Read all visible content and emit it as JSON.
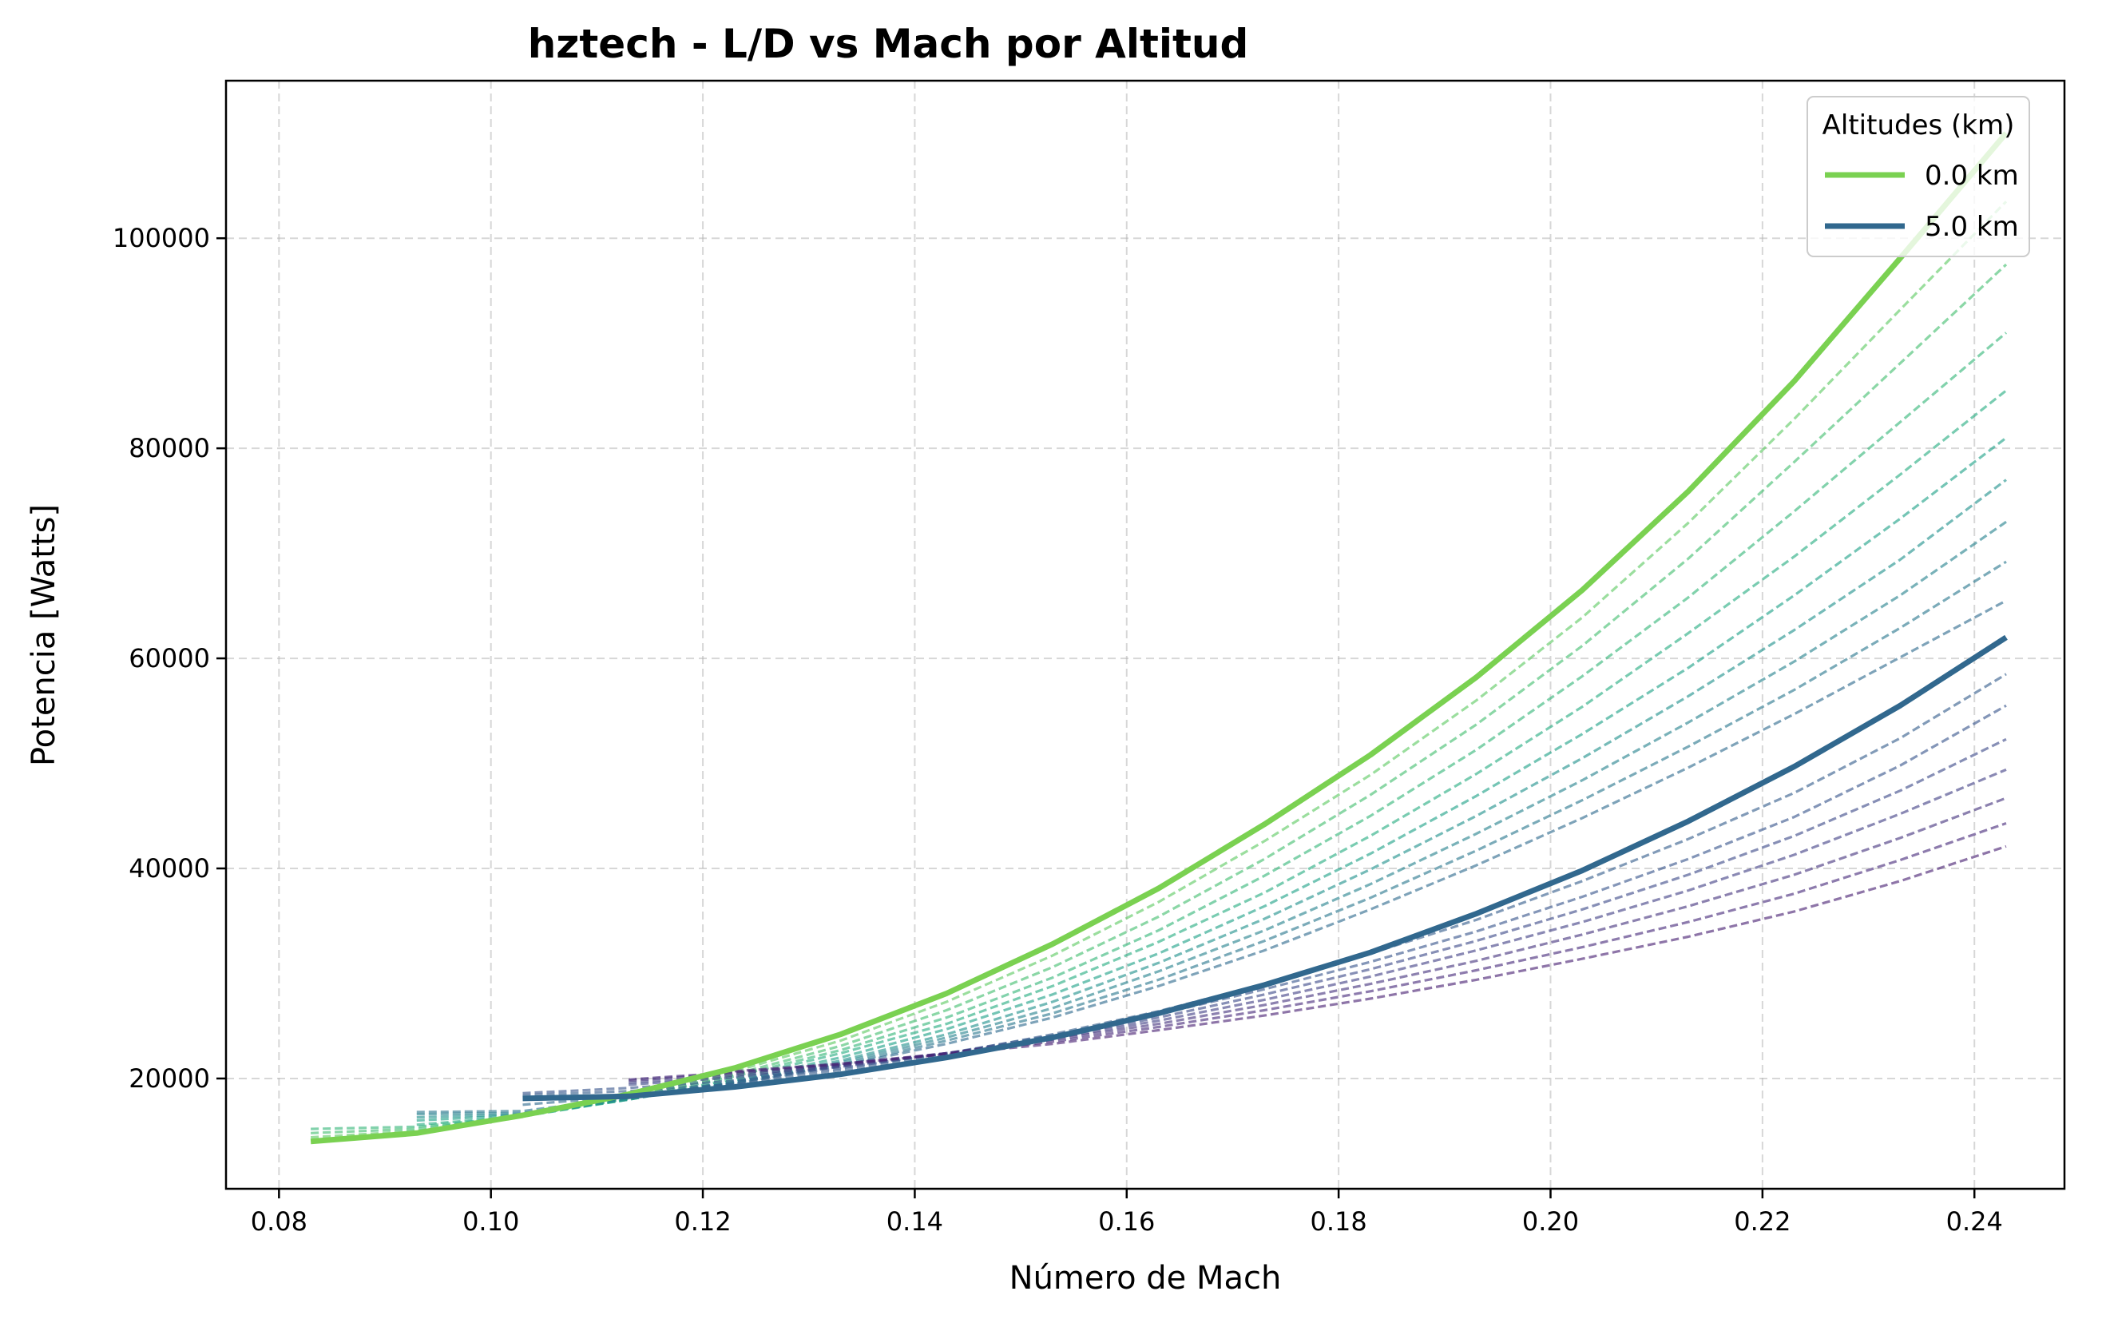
{
  "chart_data": {
    "type": "line",
    "title": "hztech - L/D vs Mach por Altitud",
    "xlabel": "Número de Mach",
    "ylabel": "Potencia [Watts]",
    "xlim": [
      0.075,
      0.2485
    ],
    "ylim": [
      9500,
      115000
    ],
    "xticks": [
      0.08,
      0.1,
      0.12,
      0.14,
      0.16,
      0.18,
      0.2,
      0.22,
      0.24
    ],
    "xtick_labels": [
      "0.08",
      "0.10",
      "0.12",
      "0.14",
      "0.16",
      "0.18",
      "0.20",
      "0.22",
      "0.24"
    ],
    "yticks": [
      20000,
      40000,
      60000,
      80000,
      100000
    ],
    "ytick_labels": [
      "20000",
      "40000",
      "60000",
      "80000",
      "100000"
    ],
    "grid": true,
    "legend": {
      "title": "Altitudes (km)",
      "placement": "top-right",
      "entries": [
        {
          "label": "0.0 km",
          "color": "#7ad151"
        },
        {
          "label": "5.0 km",
          "color": "#31688e"
        }
      ]
    },
    "series": [
      {
        "name": "0.0 km",
        "style": "solid",
        "color": "#7ad151",
        "x": [
          0.083,
          0.093,
          0.103,
          0.113,
          0.123,
          0.133,
          0.143,
          0.153,
          0.163,
          0.173,
          0.183,
          0.193,
          0.203,
          0.213,
          0.223,
          0.233,
          0.243
        ],
        "y": [
          14000,
          14800,
          16500,
          18500,
          21000,
          24200,
          28100,
          32800,
          38100,
          44200,
          50800,
          58200,
          66500,
          75900,
          86400,
          98100,
          110000
        ]
      },
      {
        "style": "dashed",
        "color": "#5ec962",
        "x": [
          0.083,
          0.093,
          0.103,
          0.113,
          0.123,
          0.133,
          0.143,
          0.153,
          0.163,
          0.173,
          0.183,
          0.193,
          0.203,
          0.213,
          0.223,
          0.233,
          0.243
        ],
        "y": [
          14400,
          15000,
          16400,
          18300,
          20700,
          23600,
          27300,
          31700,
          36800,
          42600,
          48900,
          56000,
          63900,
          72900,
          82800,
          93200,
          103500
        ]
      },
      {
        "style": "dashed",
        "color": "#44bf70",
        "x": [
          0.083,
          0.093,
          0.103,
          0.113,
          0.123,
          0.133,
          0.143,
          0.153,
          0.163,
          0.173,
          0.183,
          0.193,
          0.203,
          0.213,
          0.223,
          0.233,
          0.243
        ],
        "y": [
          14800,
          15200,
          16400,
          18200,
          20400,
          23100,
          26500,
          30600,
          35400,
          40900,
          47000,
          53700,
          61200,
          69500,
          78700,
          88100,
          97500
        ]
      },
      {
        "style": "dashed",
        "color": "#35b779",
        "x": [
          0.083,
          0.093,
          0.103,
          0.113,
          0.123,
          0.133,
          0.143,
          0.153,
          0.163,
          0.173,
          0.183,
          0.193,
          0.203,
          0.213,
          0.223,
          0.233,
          0.243
        ],
        "y": [
          15200,
          15400,
          16400,
          18100,
          20200,
          22700,
          25800,
          29600,
          34100,
          39300,
          45000,
          51300,
          58300,
          65800,
          74000,
          82500,
          91000
        ]
      },
      {
        "style": "dashed",
        "color": "#26ad81",
        "x": [
          0.093,
          0.103,
          0.113,
          0.123,
          0.133,
          0.143,
          0.153,
          0.163,
          0.173,
          0.183,
          0.193,
          0.203,
          0.213,
          0.223,
          0.233,
          0.243
        ],
        "y": [
          15600,
          16400,
          18000,
          20000,
          22400,
          25200,
          28800,
          33000,
          37700,
          43100,
          49000,
          55400,
          62400,
          69700,
          77500,
          85500
        ]
      },
      {
        "style": "dashed",
        "color": "#1fa187",
        "x": [
          0.093,
          0.103,
          0.113,
          0.123,
          0.133,
          0.143,
          0.153,
          0.163,
          0.173,
          0.183,
          0.193,
          0.203,
          0.213,
          0.223,
          0.233,
          0.243
        ],
        "y": [
          16000,
          16500,
          18000,
          19800,
          22000,
          24700,
          28000,
          31900,
          36400,
          41400,
          46900,
          52800,
          59100,
          66000,
          73300,
          81000
        ]
      },
      {
        "style": "dashed",
        "color": "#21918c",
        "x": [
          0.093,
          0.103,
          0.113,
          0.123,
          0.133,
          0.143,
          0.153,
          0.163,
          0.173,
          0.183,
          0.193,
          0.203,
          0.213,
          0.223,
          0.233,
          0.243
        ],
        "y": [
          16300,
          16600,
          18000,
          19700,
          21700,
          24200,
          27300,
          31000,
          35200,
          39900,
          45000,
          50500,
          56400,
          62700,
          69400,
          77000
        ]
      },
      {
        "style": "dashed",
        "color": "#26828e",
        "x": [
          0.093,
          0.103,
          0.113,
          0.123,
          0.133,
          0.143,
          0.153,
          0.163,
          0.173,
          0.183,
          0.193,
          0.203,
          0.213,
          0.223,
          0.233,
          0.243
        ],
        "y": [
          16600,
          16700,
          18100,
          19600,
          21500,
          23900,
          26700,
          30200,
          34100,
          38500,
          43300,
          48400,
          53900,
          59700,
          66000,
          73000
        ]
      },
      {
        "style": "dashed",
        "color": "#2a788e",
        "x": [
          0.093,
          0.103,
          0.113,
          0.123,
          0.133,
          0.143,
          0.153,
          0.163,
          0.173,
          0.183,
          0.193,
          0.203,
          0.213,
          0.223,
          0.233,
          0.243
        ],
        "y": [
          16800,
          16900,
          18200,
          19600,
          21300,
          23600,
          26200,
          29400,
          33100,
          37200,
          41700,
          46500,
          51600,
          57000,
          62900,
          69200
        ]
      },
      {
        "style": "dashed",
        "color": "#2f6b8e",
        "x": [
          0.103,
          0.113,
          0.123,
          0.133,
          0.143,
          0.153,
          0.163,
          0.173,
          0.183,
          0.193,
          0.203,
          0.213,
          0.223,
          0.233,
          0.243
        ],
        "y": [
          17500,
          18300,
          19500,
          21200,
          23300,
          25800,
          28800,
          32200,
          36100,
          40300,
          44800,
          49600,
          54700,
          60100,
          65500
        ]
      },
      {
        "name": "5.0 km",
        "style": "solid",
        "color": "#31688e",
        "x": [
          0.103,
          0.113,
          0.123,
          0.133,
          0.143,
          0.153,
          0.163,
          0.173,
          0.183,
          0.193,
          0.203,
          0.213,
          0.223,
          0.233,
          0.243
        ],
        "y": [
          18100,
          18300,
          19200,
          20400,
          22000,
          23900,
          26200,
          28900,
          32000,
          35700,
          39800,
          44500,
          49700,
          55500,
          62000
        ]
      },
      {
        "style": "dashed",
        "color": "#355e8d",
        "x": [
          0.103,
          0.113,
          0.123,
          0.133,
          0.143,
          0.153,
          0.163,
          0.173,
          0.183,
          0.193,
          0.203,
          0.213,
          0.223,
          0.233,
          0.243
        ],
        "y": [
          18400,
          18800,
          19500,
          20800,
          22300,
          24200,
          26400,
          29000,
          31900,
          35100,
          38800,
          42800,
          47200,
          52400,
          58500
        ]
      },
      {
        "style": "dashed",
        "color": "#39558c",
        "x": [
          0.103,
          0.113,
          0.123,
          0.133,
          0.143,
          0.153,
          0.163,
          0.173,
          0.183,
          0.193,
          0.203,
          0.213,
          0.223,
          0.233,
          0.243
        ],
        "y": [
          18600,
          19100,
          19800,
          21000,
          22400,
          24100,
          26100,
          28500,
          31100,
          34000,
          37300,
          40900,
          44900,
          49800,
          55500
        ]
      },
      {
        "style": "dashed",
        "color": "#3e4a89",
        "x": [
          0.113,
          0.123,
          0.133,
          0.143,
          0.153,
          0.163,
          0.173,
          0.183,
          0.193,
          0.203,
          0.213,
          0.223,
          0.233,
          0.243
        ],
        "y": [
          19400,
          20100,
          21100,
          22400,
          23900,
          25800,
          28000,
          30400,
          33100,
          36100,
          39400,
          43100,
          47400,
          52300
        ]
      },
      {
        "style": "dashed",
        "color": "#424086",
        "x": [
          0.113,
          0.123,
          0.133,
          0.143,
          0.153,
          0.163,
          0.173,
          0.183,
          0.193,
          0.203,
          0.213,
          0.223,
          0.233,
          0.243
        ],
        "y": [
          19600,
          20300,
          21200,
          22400,
          23800,
          25500,
          27500,
          29700,
          32200,
          34900,
          37900,
          41300,
          45200,
          49400
        ]
      },
      {
        "style": "dashed",
        "color": "#46337e",
        "x": [
          0.113,
          0.123,
          0.133,
          0.143,
          0.153,
          0.163,
          0.173,
          0.183,
          0.193,
          0.203,
          0.213,
          0.223,
          0.233,
          0.243
        ],
        "y": [
          19800,
          20500,
          21300,
          22400,
          23700,
          25200,
          27000,
          29000,
          31200,
          33700,
          36400,
          39400,
          42900,
          46700
        ]
      },
      {
        "style": "dashed",
        "color": "#472a7a",
        "x": [
          0.113,
          0.123,
          0.133,
          0.143,
          0.153,
          0.163,
          0.173,
          0.183,
          0.193,
          0.203,
          0.213,
          0.223,
          0.233,
          0.243
        ],
        "y": [
          19900,
          20600,
          21400,
          22400,
          23500,
          24900,
          26500,
          28300,
          30300,
          32500,
          34900,
          37600,
          40800,
          44300
        ]
      },
      {
        "style": "dashed",
        "color": "#482173",
        "x": [
          0.123,
          0.133,
          0.143,
          0.153,
          0.163,
          0.173,
          0.183,
          0.193,
          0.203,
          0.213,
          0.223,
          0.233,
          0.243
        ],
        "y": [
          20700,
          21400,
          22300,
          23300,
          24600,
          26000,
          27600,
          29400,
          31400,
          33500,
          35900,
          38800,
          42100
        ]
      }
    ]
  }
}
